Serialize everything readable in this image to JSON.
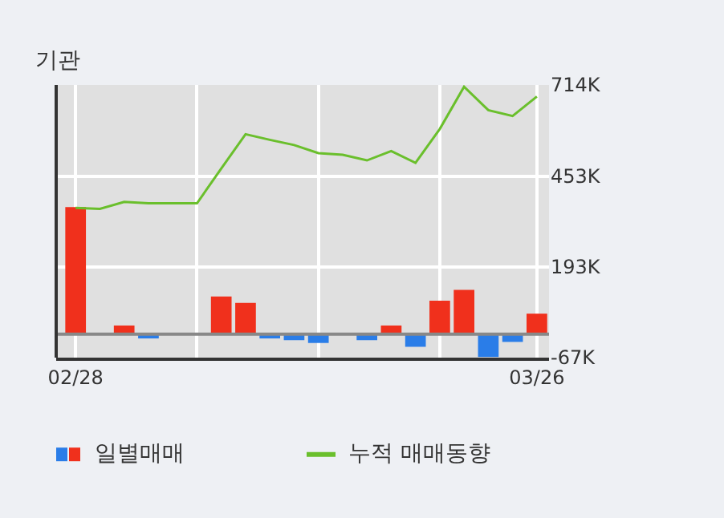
{
  "chart_data": {
    "type": "bar",
    "title": "기관",
    "categories": [
      "02/28",
      null,
      null,
      null,
      null,
      null,
      null,
      null,
      null,
      null,
      null,
      null,
      null,
      null,
      null,
      null,
      null,
      null,
      null,
      "03/26"
    ],
    "series": [
      {
        "name": "일별매매",
        "colors": [
          "#f0301c",
          "#f0301c",
          "#f0301c",
          "#2a7de8",
          "#f0301c",
          "#f0301c",
          "#f0301c",
          "#f0301c",
          "#2a7de8",
          "#2a7de8",
          "#2a7de8",
          "#f0301c",
          "#2a7de8",
          "#f0301c",
          "#2a7de8",
          "#f0301c",
          "#f0301c",
          "#2a7de8",
          "#2a7de8",
          "#f0301c"
        ],
        "values": [
          364,
          0,
          25,
          -12,
          0,
          0,
          108,
          90,
          -12,
          -17,
          -25,
          0,
          -17,
          25,
          -36,
          96,
          127,
          -65,
          -22,
          59
        ]
      },
      {
        "name": "누적 매매동향",
        "type": "line",
        "color": "#6abf2c",
        "values": [
          362,
          359,
          379,
          375,
          375,
          375,
          475,
          573,
          557,
          542,
          519,
          514,
          498,
          525,
          491,
          588,
          709,
          642,
          625,
          681
        ]
      }
    ],
    "ylim": [
      -67,
      714
    ],
    "yticks": [
      {
        "value": 714,
        "label": "714K"
      },
      {
        "value": 453,
        "label": "453K"
      },
      {
        "value": 193,
        "label": "193K"
      },
      {
        "value": -67,
        "label": "-67K"
      }
    ],
    "ref_lines": [
      {
        "axis": "y",
        "value": 0,
        "color": "#888888"
      }
    ],
    "grid": true,
    "legend": "bottom"
  }
}
